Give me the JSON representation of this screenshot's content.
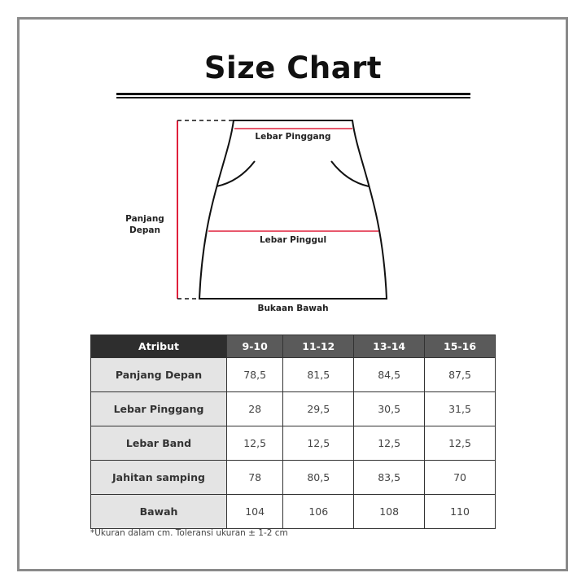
{
  "title": "Size Chart",
  "diagram": {
    "waist_label": "Lebar Pinggang",
    "hip_label": "Lebar Pinggul",
    "length_label_line1": "Panjang",
    "length_label_line2": "Depan",
    "hem_label": "Bukaan Bawah",
    "measure_color": "#e0203c"
  },
  "table": {
    "headers": [
      "Atribut",
      "9-10",
      "11-12",
      "13-14",
      "15-16"
    ],
    "rows": [
      {
        "attr": "Panjang Depan",
        "values": [
          "78,5",
          "81,5",
          "84,5",
          "87,5"
        ]
      },
      {
        "attr": "Lebar Pinggang",
        "values": [
          "28",
          "29,5",
          "30,5",
          "31,5"
        ]
      },
      {
        "attr": "Lebar Band",
        "values": [
          "12,5",
          "12,5",
          "12,5",
          "12,5"
        ]
      },
      {
        "attr": "Jahitan samping",
        "values": [
          "78",
          "80,5",
          "83,5",
          "70"
        ]
      },
      {
        "attr": "Bawah",
        "values": [
          "104",
          "106",
          "108",
          "110"
        ]
      }
    ]
  },
  "footnote": "*Ukuran dalam cm. Toleransi ukuran ± 1-2 cm"
}
